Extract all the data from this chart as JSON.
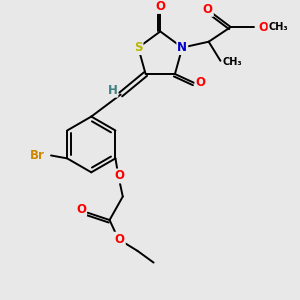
{
  "bg_color": "#e8e8e8",
  "atom_colors": {
    "S": "#b8b800",
    "N": "#0000cc",
    "O": "#ff0000",
    "Br": "#cc8800",
    "C": "#000000",
    "H": "#408080"
  },
  "bond_color": "#000000",
  "figsize": [
    3.0,
    3.0
  ],
  "dpi": 100
}
